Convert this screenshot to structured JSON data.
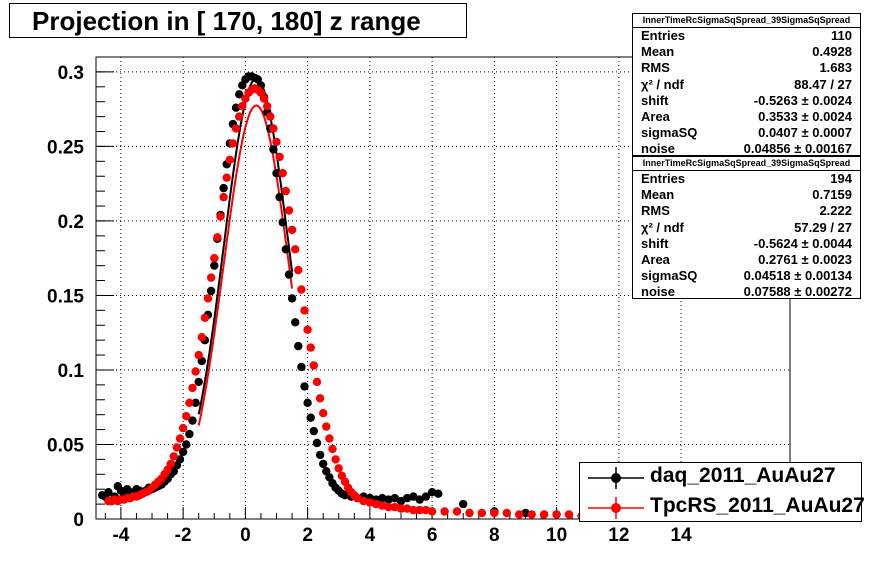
{
  "title": "Projection in [ 170, 180] z range",
  "colors": {
    "daq": "#000000",
    "tpcrs": "#ff0000",
    "grid": "#000000"
  },
  "stats_boxes": [
    {
      "title": "InnerTimeRcSigmaSqSpread_39SigmaSqSpread",
      "rows": [
        {
          "label": "Entries",
          "value": "110"
        },
        {
          "label": "Mean",
          "value": "0.4928"
        },
        {
          "label": "RMS",
          "value": "1.683"
        },
        {
          "label": "χ² / ndf",
          "value": "88.47 / 27"
        },
        {
          "label": "shift",
          "value": "-0.5263 ± 0.0024"
        },
        {
          "label": "Area",
          "value": "0.3533 ± 0.0024"
        },
        {
          "label": "sigmaSQ",
          "value": "0.0407 ± 0.0007"
        },
        {
          "label": "noise",
          "value": "0.04856 ± 0.00167"
        }
      ]
    },
    {
      "title": "InnerTimeRcSigmaSqSpread_39SigmaSqSpread",
      "rows": [
        {
          "label": "Entries",
          "value": "194"
        },
        {
          "label": "Mean",
          "value": "0.7159"
        },
        {
          "label": "RMS",
          "value": "2.222"
        },
        {
          "label": "χ² / ndf",
          "value": "57.29 / 27"
        },
        {
          "label": "shift",
          "value": "-0.5624 ± 0.0044"
        },
        {
          "label": "Area",
          "value": "0.2761 ± 0.0023"
        },
        {
          "label": "sigmaSQ",
          "value": "0.04518 ± 0.00134"
        },
        {
          "label": "noise",
          "value": "0.07588 ± 0.00272"
        }
      ]
    }
  ],
  "legend": [
    {
      "name": "daq_2011_AuAu27",
      "color": "#000000"
    },
    {
      "name": "TpcRS_2011_AuAu27",
      "color": "#ff0000"
    }
  ],
  "chart_data": {
    "type": "scatter",
    "title": "Projection in [ 170, 180] z range",
    "xlim": [
      -4.8,
      17.5
    ],
    "ylim": [
      0,
      0.31
    ],
    "x_ticks": [
      -4,
      -2,
      0,
      2,
      4,
      6,
      8,
      10,
      12,
      14
    ],
    "x_tick_labels": [
      "-4",
      "-2",
      "0",
      "2",
      "4",
      "6",
      "8",
      "10",
      "12",
      "14"
    ],
    "y_ticks": [
      0,
      0.05,
      0.1,
      0.15,
      0.2,
      0.25,
      0.3
    ],
    "y_tick_labels": [
      "0",
      "0.05",
      "0.1",
      "0.15",
      "0.2",
      "0.25",
      "0.3"
    ],
    "grid": true,
    "legend_position": "bottom-right",
    "series": [
      {
        "name": "daq_2011_AuAu27",
        "color": "#000000",
        "points": [
          [
            -4.6,
            0.016
          ],
          [
            -4.5,
            0.015
          ],
          [
            -4.4,
            0.018
          ],
          [
            -4.3,
            0.012
          ],
          [
            -4.2,
            0.015
          ],
          [
            -4.1,
            0.022
          ],
          [
            -4.0,
            0.019
          ],
          [
            -3.9,
            0.016
          ],
          [
            -3.8,
            0.02
          ],
          [
            -3.7,
            0.018
          ],
          [
            -3.6,
            0.017
          ],
          [
            -3.5,
            0.02
          ],
          [
            -3.4,
            0.019
          ],
          [
            -3.3,
            0.018
          ],
          [
            -3.2,
            0.019
          ],
          [
            -3.1,
            0.021
          ],
          [
            -3.0,
            0.02
          ],
          [
            -2.9,
            0.021
          ],
          [
            -2.8,
            0.022
          ],
          [
            -2.7,
            0.023
          ],
          [
            -2.6,
            0.025
          ],
          [
            -2.5,
            0.027
          ],
          [
            -2.4,
            0.03
          ],
          [
            -2.3,
            0.032
          ],
          [
            -2.2,
            0.036
          ],
          [
            -2.1,
            0.04
          ],
          [
            -2.0,
            0.045
          ],
          [
            -1.9,
            0.05
          ],
          [
            -1.8,
            0.057
          ],
          [
            -1.7,
            0.066
          ],
          [
            -1.6,
            0.078
          ],
          [
            -1.5,
            0.092
          ],
          [
            -1.4,
            0.106
          ],
          [
            -1.3,
            0.12
          ],
          [
            -1.2,
            0.137
          ],
          [
            -1.1,
            0.153
          ],
          [
            -1.0,
            0.17
          ],
          [
            -0.9,
            0.188
          ],
          [
            -0.8,
            0.204
          ],
          [
            -0.7,
            0.222
          ],
          [
            -0.6,
            0.238
          ],
          [
            -0.5,
            0.252
          ],
          [
            -0.4,
            0.265
          ],
          [
            -0.3,
            0.276
          ],
          [
            -0.2,
            0.285
          ],
          [
            -0.1,
            0.291
          ],
          [
            0.0,
            0.295
          ],
          [
            0.1,
            0.297
          ],
          [
            0.2,
            0.297
          ],
          [
            0.3,
            0.296
          ],
          [
            0.4,
            0.295
          ],
          [
            0.5,
            0.291
          ],
          [
            0.6,
            0.283
          ],
          [
            0.7,
            0.273
          ],
          [
            0.8,
            0.262
          ],
          [
            0.9,
            0.248
          ],
          [
            1.0,
            0.232
          ],
          [
            1.1,
            0.216
          ],
          [
            1.2,
            0.199
          ],
          [
            1.3,
            0.181
          ],
          [
            1.4,
            0.164
          ],
          [
            1.5,
            0.148
          ],
          [
            1.6,
            0.132
          ],
          [
            1.7,
            0.116
          ],
          [
            1.8,
            0.102
          ],
          [
            1.9,
            0.089
          ],
          [
            2.0,
            0.078
          ],
          [
            2.1,
            0.068
          ],
          [
            2.2,
            0.059
          ],
          [
            2.3,
            0.051
          ],
          [
            2.4,
            0.043
          ],
          [
            2.5,
            0.037
          ],
          [
            2.6,
            0.032
          ],
          [
            2.7,
            0.028
          ],
          [
            2.8,
            0.024
          ],
          [
            2.9,
            0.021
          ],
          [
            3.0,
            0.019
          ],
          [
            3.1,
            0.017
          ],
          [
            3.2,
            0.016
          ],
          [
            3.4,
            0.015
          ],
          [
            3.6,
            0.014
          ],
          [
            3.8,
            0.015
          ],
          [
            4.0,
            0.014
          ],
          [
            4.2,
            0.013
          ],
          [
            4.4,
            0.014
          ],
          [
            4.6,
            0.013
          ],
          [
            4.8,
            0.014
          ],
          [
            5.0,
            0.012
          ],
          [
            5.2,
            0.014
          ],
          [
            5.4,
            0.015
          ],
          [
            5.6,
            0.013
          ],
          [
            5.8,
            0.015
          ],
          [
            6.0,
            0.018
          ],
          [
            6.2,
            0.017
          ],
          [
            7.0,
            0.01
          ],
          [
            8.0,
            0.005
          ],
          [
            9.0,
            0.004
          ],
          [
            10.0,
            0.003
          ],
          [
            11.0,
            0.002
          ],
          [
            12.0,
            0.002
          ]
        ]
      },
      {
        "name": "TpcRS_2011_AuAu27",
        "color": "#ff0000",
        "points": [
          [
            -4.4,
            0.012
          ],
          [
            -4.3,
            0.012
          ],
          [
            -4.2,
            0.013
          ],
          [
            -4.1,
            0.012
          ],
          [
            -4.0,
            0.013
          ],
          [
            -3.9,
            0.013
          ],
          [
            -3.8,
            0.014
          ],
          [
            -3.7,
            0.014
          ],
          [
            -3.6,
            0.015
          ],
          [
            -3.5,
            0.015
          ],
          [
            -3.4,
            0.016
          ],
          [
            -3.3,
            0.017
          ],
          [
            -3.2,
            0.018
          ],
          [
            -3.1,
            0.019
          ],
          [
            -3.0,
            0.021
          ],
          [
            -2.9,
            0.023
          ],
          [
            -2.8,
            0.025
          ],
          [
            -2.7,
            0.027
          ],
          [
            -2.6,
            0.03
          ],
          [
            -2.5,
            0.033
          ],
          [
            -2.4,
            0.037
          ],
          [
            -2.3,
            0.042
          ],
          [
            -2.2,
            0.048
          ],
          [
            -2.1,
            0.054
          ],
          [
            -2.0,
            0.061
          ],
          [
            -1.9,
            0.069
          ],
          [
            -1.8,
            0.078
          ],
          [
            -1.7,
            0.088
          ],
          [
            -1.6,
            0.099
          ],
          [
            -1.5,
            0.11
          ],
          [
            -1.4,
            0.122
          ],
          [
            -1.3,
            0.135
          ],
          [
            -1.2,
            0.148
          ],
          [
            -1.1,
            0.162
          ],
          [
            -1.0,
            0.175
          ],
          [
            -0.9,
            0.189
          ],
          [
            -0.8,
            0.203
          ],
          [
            -0.7,
            0.216
          ],
          [
            -0.6,
            0.229
          ],
          [
            -0.5,
            0.241
          ],
          [
            -0.4,
            0.252
          ],
          [
            -0.3,
            0.262
          ],
          [
            -0.2,
            0.27
          ],
          [
            -0.1,
            0.277
          ],
          [
            0.0,
            0.282
          ],
          [
            0.1,
            0.286
          ],
          [
            0.2,
            0.288
          ],
          [
            0.3,
            0.289
          ],
          [
            0.4,
            0.288
          ],
          [
            0.5,
            0.286
          ],
          [
            0.6,
            0.282
          ],
          [
            0.7,
            0.277
          ],
          [
            0.8,
            0.27
          ],
          [
            0.9,
            0.262
          ],
          [
            1.0,
            0.253
          ],
          [
            1.1,
            0.243
          ],
          [
            1.2,
            0.232
          ],
          [
            1.3,
            0.22
          ],
          [
            1.4,
            0.207
          ],
          [
            1.5,
            0.194
          ],
          [
            1.6,
            0.181
          ],
          [
            1.7,
            0.167
          ],
          [
            1.8,
            0.154
          ],
          [
            1.9,
            0.14
          ],
          [
            2.0,
            0.127
          ],
          [
            2.1,
            0.115
          ],
          [
            2.2,
            0.103
          ],
          [
            2.3,
            0.092
          ],
          [
            2.4,
            0.081
          ],
          [
            2.5,
            0.071
          ],
          [
            2.6,
            0.062
          ],
          [
            2.7,
            0.054
          ],
          [
            2.8,
            0.047
          ],
          [
            2.9,
            0.04
          ],
          [
            3.0,
            0.034
          ],
          [
            3.1,
            0.029
          ],
          [
            3.2,
            0.025
          ],
          [
            3.3,
            0.021
          ],
          [
            3.4,
            0.018
          ],
          [
            3.5,
            0.016
          ],
          [
            3.6,
            0.014
          ],
          [
            3.8,
            0.012
          ],
          [
            4.0,
            0.011
          ],
          [
            4.2,
            0.01
          ],
          [
            4.4,
            0.009
          ],
          [
            4.6,
            0.008
          ],
          [
            4.8,
            0.008
          ],
          [
            5.0,
            0.007
          ],
          [
            5.2,
            0.007
          ],
          [
            5.4,
            0.006
          ],
          [
            5.6,
            0.006
          ],
          [
            5.8,
            0.006
          ],
          [
            6.0,
            0.005
          ],
          [
            6.4,
            0.005
          ],
          [
            6.8,
            0.005
          ],
          [
            7.2,
            0.004
          ],
          [
            7.6,
            0.004
          ],
          [
            8.0,
            0.004
          ],
          [
            8.4,
            0.004
          ],
          [
            8.8,
            0.003
          ],
          [
            9.2,
            0.003
          ],
          [
            9.6,
            0.003
          ],
          [
            10.0,
            0.003
          ],
          [
            10.4,
            0.003
          ],
          [
            10.8,
            0.002
          ],
          [
            11.2,
            0.002
          ],
          [
            11.6,
            0.002
          ]
        ]
      }
    ],
    "fits": [
      {
        "series": "daq_2011_AuAu27",
        "color": "#000000",
        "peak": 0.2955,
        "center": 0.35,
        "sigma": 1.04,
        "baseline": 0.012,
        "x_range": [
          -1.5,
          1.5
        ]
      },
      {
        "series": "TpcRS_2011_AuAu27",
        "color": "#ff0000",
        "peak": 0.2775,
        "center": 0.35,
        "sigma": 1.05,
        "baseline": 0.005,
        "x_range": [
          -1.5,
          1.5
        ]
      }
    ]
  }
}
